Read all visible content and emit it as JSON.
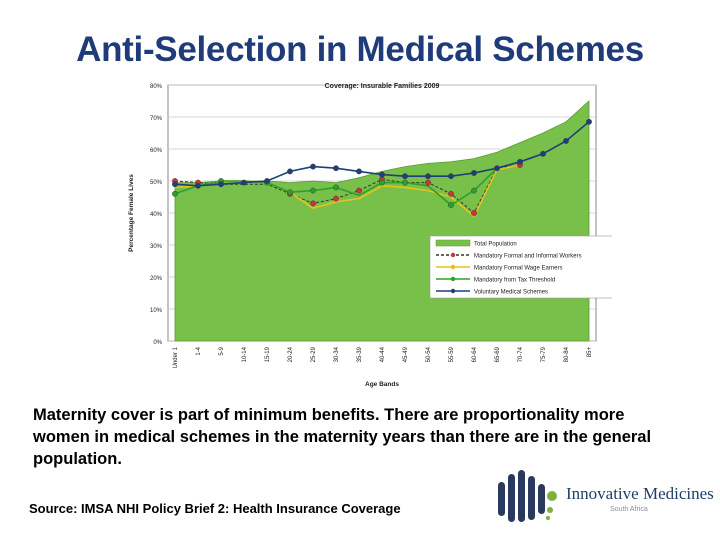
{
  "slide": {
    "title": "Anti-Selection in Medical Schemes",
    "body": "Maternity cover is part of minimum benefits. There are proportionality more women in medical schemes in the maternity years than there are in the general population.",
    "source": "Source: IMSA NHI Policy Brief 2: Health Insurance Coverage"
  },
  "logo": {
    "name": "Innovative Medicines",
    "sub": "South Africa",
    "colors": {
      "dark": "#2a3a5e",
      "green": "#7fb03a"
    }
  },
  "chart_data": {
    "type": "line",
    "title": "Coverage: Insurable Families 2009",
    "xlabel": "Age Bands",
    "ylabel": "Percentage Female Lives",
    "ylim": [
      0,
      80
    ],
    "y_ticks": [
      0,
      10,
      20,
      30,
      40,
      50,
      60,
      70,
      80
    ],
    "y_tick_labels": [
      "0%",
      "10%",
      "20%",
      "30%",
      "40%",
      "50%",
      "60%",
      "70%",
      "80%"
    ],
    "categories": [
      "Under 1",
      "1-4",
      "5-9",
      "10-14",
      "15-19",
      "20-24",
      "25-29",
      "30-34",
      "35-39",
      "40-44",
      "45-49",
      "50-54",
      "55-59",
      "60-64",
      "65-69",
      "70-74",
      "75-79",
      "80-84",
      "85+"
    ],
    "grid": true,
    "legend": "right",
    "series": [
      {
        "name": "Total Population",
        "style": "area",
        "color": "#78c04a",
        "values": [
          49.5,
          49.5,
          50,
          50,
          50,
          49.5,
          50,
          49.5,
          51,
          53,
          54.5,
          55.5,
          56,
          57,
          59,
          62,
          65,
          68.5,
          75
        ]
      },
      {
        "name": "Mandatory Formal and Informal Workers",
        "style": "dashed",
        "color": "#333333",
        "values": [
          50,
          49.5,
          49,
          49,
          49,
          46,
          43,
          44.5,
          47,
          50.5,
          49.5,
          49.5,
          46,
          40,
          54,
          55,
          null,
          null,
          null
        ]
      },
      {
        "name": "Mandatory Formal Wage Earners",
        "style": "solid",
        "color": "#e8c21a",
        "values": [
          48,
          48.5,
          50,
          50,
          49.5,
          46.5,
          41.5,
          43.5,
          44.5,
          48.5,
          48,
          47,
          45,
          39,
          53.5,
          55,
          null,
          null,
          null
        ]
      },
      {
        "name": "Mandatory from Tax Threshold",
        "style": "solid",
        "color": "#2ca02c",
        "values": [
          46,
          48.5,
          50,
          50,
          49.5,
          46.5,
          47,
          48,
          45.5,
          49.5,
          49.5,
          48.5,
          42.5,
          47,
          54,
          null,
          null,
          null,
          null
        ]
      },
      {
        "name": "Voluntary Medical Schemes",
        "style": "solid",
        "color": "#1f3f7a",
        "values": [
          49,
          48.5,
          49,
          49.5,
          50,
          53,
          54.5,
          54,
          53,
          52,
          51.5,
          51.5,
          51.5,
          52.5,
          54,
          56,
          58.5,
          62.5,
          68.5
        ]
      }
    ],
    "markers": {
      "Mandatory Formal and Informal Workers": {
        "color": "#cc3333",
        "indices": [
          0,
          1,
          5,
          6,
          7,
          8,
          9,
          11,
          12,
          13,
          15
        ]
      },
      "Mandatory from Tax Threshold": {
        "color": "#2ca02c",
        "indices": [
          0,
          2,
          4,
          5,
          6,
          7,
          9,
          10,
          12,
          13
        ]
      },
      "Voluntary Medical Schemes": {
        "color": "#1f3f7a",
        "indices": [
          0,
          1,
          2,
          3,
          4,
          5,
          6,
          7,
          8,
          9,
          10,
          11,
          12,
          13,
          14,
          15,
          16,
          17,
          18
        ]
      }
    }
  }
}
